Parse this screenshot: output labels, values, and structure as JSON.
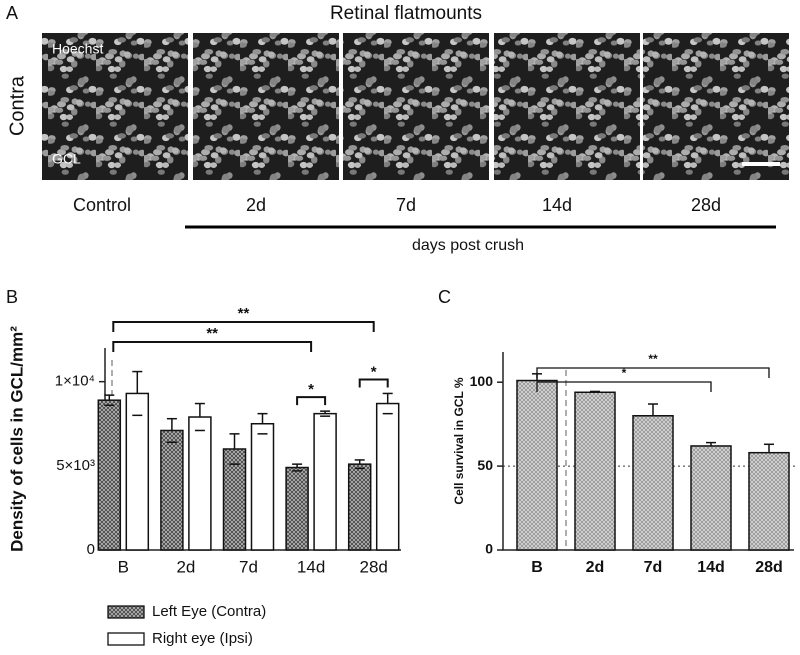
{
  "panel_a": {
    "label": "A",
    "title": "Retinal flatmounts",
    "row_label": "Contra",
    "stain_label": "Hoechst",
    "layer_label": "GCL",
    "columns": [
      "Control",
      "2d",
      "7d",
      "14d",
      "28d"
    ],
    "axis_label": "days post crush"
  },
  "chart_data": [
    {
      "type": "bar",
      "panel_label": "B",
      "y_label": "Density of cells in GCL/mm²",
      "categories": [
        "B",
        "2d",
        "7d",
        "14d",
        "28d"
      ],
      "series": [
        {
          "name": "Left Eye (Contra)",
          "color": "#555555",
          "hatched": true,
          "values": [
            8900,
            7100,
            6000,
            4900,
            5100
          ],
          "errors": [
            300,
            700,
            900,
            200,
            250
          ]
        },
        {
          "name": "Right eye (Ipsi)",
          "color": "#ffffff",
          "hatched": false,
          "values": [
            9300,
            7900,
            7500,
            8100,
            8700
          ],
          "errors": [
            1300,
            800,
            600,
            150,
            600
          ]
        }
      ],
      "ylim": [
        0,
        12000
      ],
      "yticks": [
        0,
        {
          "value": 5000,
          "label": "5×10³"
        },
        {
          "value": 10000,
          "label": "1×10⁴"
        }
      ],
      "annotations": [
        {
          "text": "**",
          "from": 0,
          "to": 4
        },
        {
          "text": "**",
          "from": 0,
          "to": 3
        },
        {
          "text": "*",
          "category": 3
        },
        {
          "text": "*",
          "category": 4
        }
      ],
      "legend": "bottom-left"
    },
    {
      "type": "bar",
      "panel_label": "C",
      "y_label": "Cell survival in GCL %",
      "categories": [
        "B",
        "2d",
        "7d",
        "14d",
        "28d"
      ],
      "series": [
        {
          "color": "#8a8a8a",
          "hatched": true,
          "values": [
            101,
            94,
            80,
            62,
            58
          ],
          "errors": [
            4,
            0.5,
            7,
            2,
            5
          ]
        }
      ],
      "ylim": [
        0,
        118
      ],
      "yticks": [
        0,
        50,
        100
      ],
      "reference_line": 50,
      "annotations": [
        {
          "text": "**",
          "from": 0,
          "to": 4
        },
        {
          "text": "*",
          "from": 0,
          "to": 3
        }
      ]
    }
  ]
}
